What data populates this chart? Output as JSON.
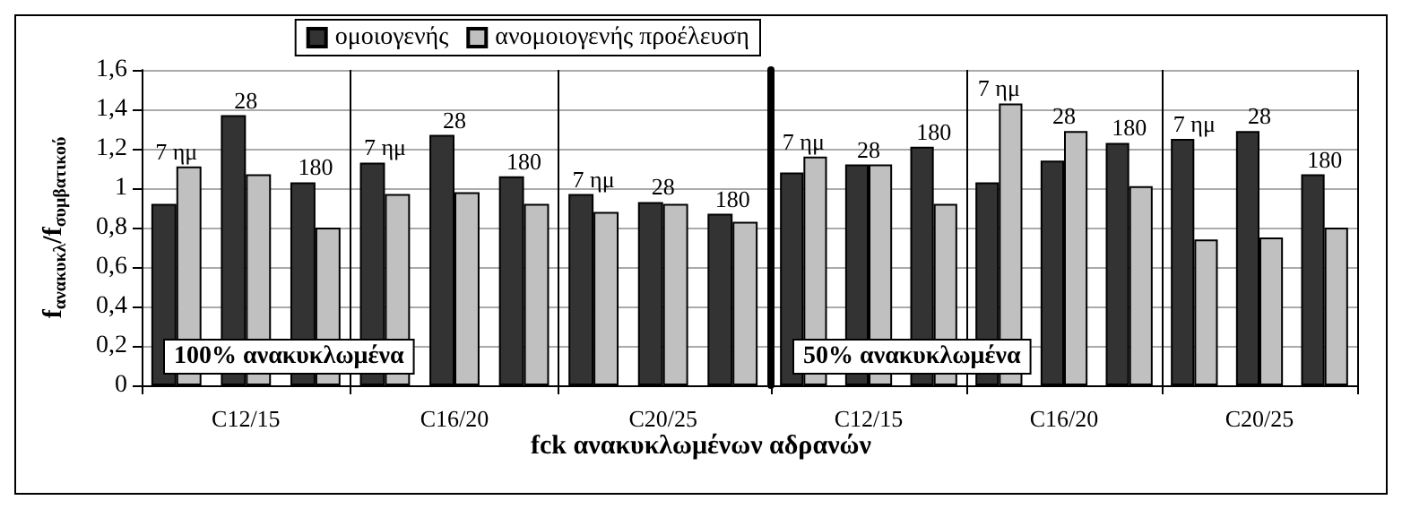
{
  "chart_data": [
    {
      "type": "bar",
      "ylabel": "f$_{ανακυκλ}$/f$_{συμβατικού}$",
      "xlabel": "fck ανακυκλωμένων αδρανών",
      "categories": [
        null,
        "C12/15",
        null,
        null,
        "C16/20",
        null,
        null,
        "C20/25",
        null
      ],
      "series": [
        {
          "name": "ομοιογενής",
          "color": "#333333",
          "values": [
            0.92,
            1.37,
            1.03,
            1.13,
            1.27,
            1.06,
            0.97,
            0.93,
            0.87
          ]
        },
        {
          "name": "ανομοιογενής προέλευση",
          "color": "#c0c0c0",
          "values": [
            1.11,
            1.07,
            0.8,
            0.97,
            0.98,
            0.92,
            0.88,
            0.92,
            0.83
          ]
        }
      ],
      "ylim": [
        0,
        1.6
      ],
      "yticks": [
        0,
        {
          "value": 0.2,
          "label": "0,2"
        },
        {
          "value": 0.4,
          "label": "0,4"
        },
        {
          "value": 0.6,
          "label": "0,6"
        },
        {
          "value": 0.8,
          "label": "0,8"
        },
        1,
        {
          "value": 1.2,
          "label": "1,2"
        },
        {
          "value": 1.4,
          "label": "1,4"
        },
        {
          "value": 1.6,
          "label": "1,6"
        }
      ],
      "grid": "y",
      "legend": "top right",
      "annotations": [
        "7 ημ",
        "28",
        "180",
        "7 ημ",
        "28",
        "180",
        "7 ημ",
        "28",
        "180",
        "100% ανακυκλωμένα"
      ]
    },
    {
      "type": "bar",
      "categories": [
        null,
        "C12/15",
        null,
        null,
        "C16/20",
        null,
        null,
        "C20/25",
        null
      ],
      "series": [
        {
          "color": "#333333",
          "values": [
            1.08,
            1.12,
            1.21,
            1.03,
            1.14,
            1.23,
            1.25,
            1.29,
            1.07
          ]
        },
        {
          "color": "#c0c0c0",
          "values": [
            1.16,
            1.12,
            0.92,
            1.43,
            1.29,
            1.01,
            0.74,
            0.75,
            0.8
          ]
        }
      ],
      "ylim": [
        0,
        1.6
      ],
      "yticks": [
        0,
        0.2,
        0.4,
        0.6,
        0.8,
        1,
        1.2,
        1.4,
        1.6
      ],
      "grid": "y",
      "tick_labels": "x",
      "annotations": [
        "7 ημ",
        "28",
        "180",
        "7 ημ",
        "28",
        "180",
        "7 ημ",
        "28",
        "180",
        "50% ανακυκλωμένα"
      ]
    }
  ]
}
